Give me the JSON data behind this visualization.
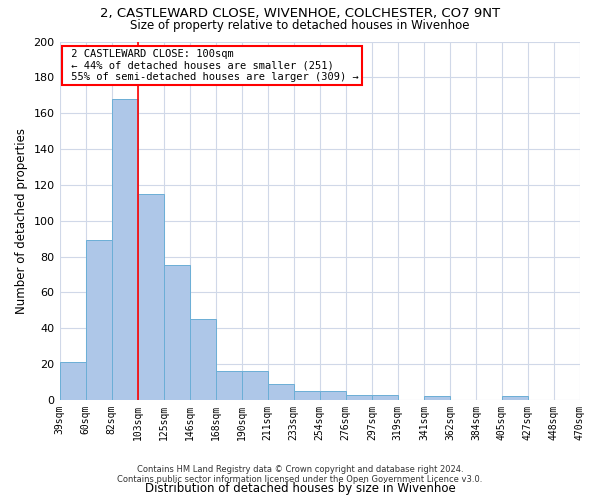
{
  "title": "2, CASTLEWARD CLOSE, WIVENHOE, COLCHESTER, CO7 9NT",
  "subtitle": "Size of property relative to detached houses in Wivenhoe",
  "xlabel": "Distribution of detached houses by size in Wivenhoe",
  "ylabel": "Number of detached properties",
  "bar_values": [
    21,
    89,
    168,
    115,
    75,
    45,
    16,
    16,
    9,
    5,
    5,
    3,
    3,
    0,
    2,
    0,
    0,
    2,
    0,
    0
  ],
  "tick_labels": [
    "39sqm",
    "60sqm",
    "82sqm",
    "103sqm",
    "125sqm",
    "146sqm",
    "168sqm",
    "190sqm",
    "211sqm",
    "233sqm",
    "254sqm",
    "276sqm",
    "297sqm",
    "319sqm",
    "341sqm",
    "362sqm",
    "384sqm",
    "405sqm",
    "427sqm",
    "448sqm",
    "470sqm"
  ],
  "bar_color": "#aec7e8",
  "bar_edge_color": "#6baed6",
  "red_line_x": 2.5,
  "ylim": [
    0,
    200
  ],
  "yticks": [
    0,
    20,
    40,
    60,
    80,
    100,
    120,
    140,
    160,
    180,
    200
  ],
  "annotation_title": "2 CASTLEWARD CLOSE: 100sqm",
  "annotation_line1": "← 44% of detached houses are smaller (251)",
  "annotation_line2": "55% of semi-detached houses are larger (309) →",
  "footnote1": "Contains HM Land Registry data © Crown copyright and database right 2024.",
  "footnote2": "Contains public sector information licensed under the Open Government Licence v3.0.",
  "bg_color": "#ffffff",
  "plot_bg_color": "#ffffff",
  "grid_color": "#d0d8e8"
}
